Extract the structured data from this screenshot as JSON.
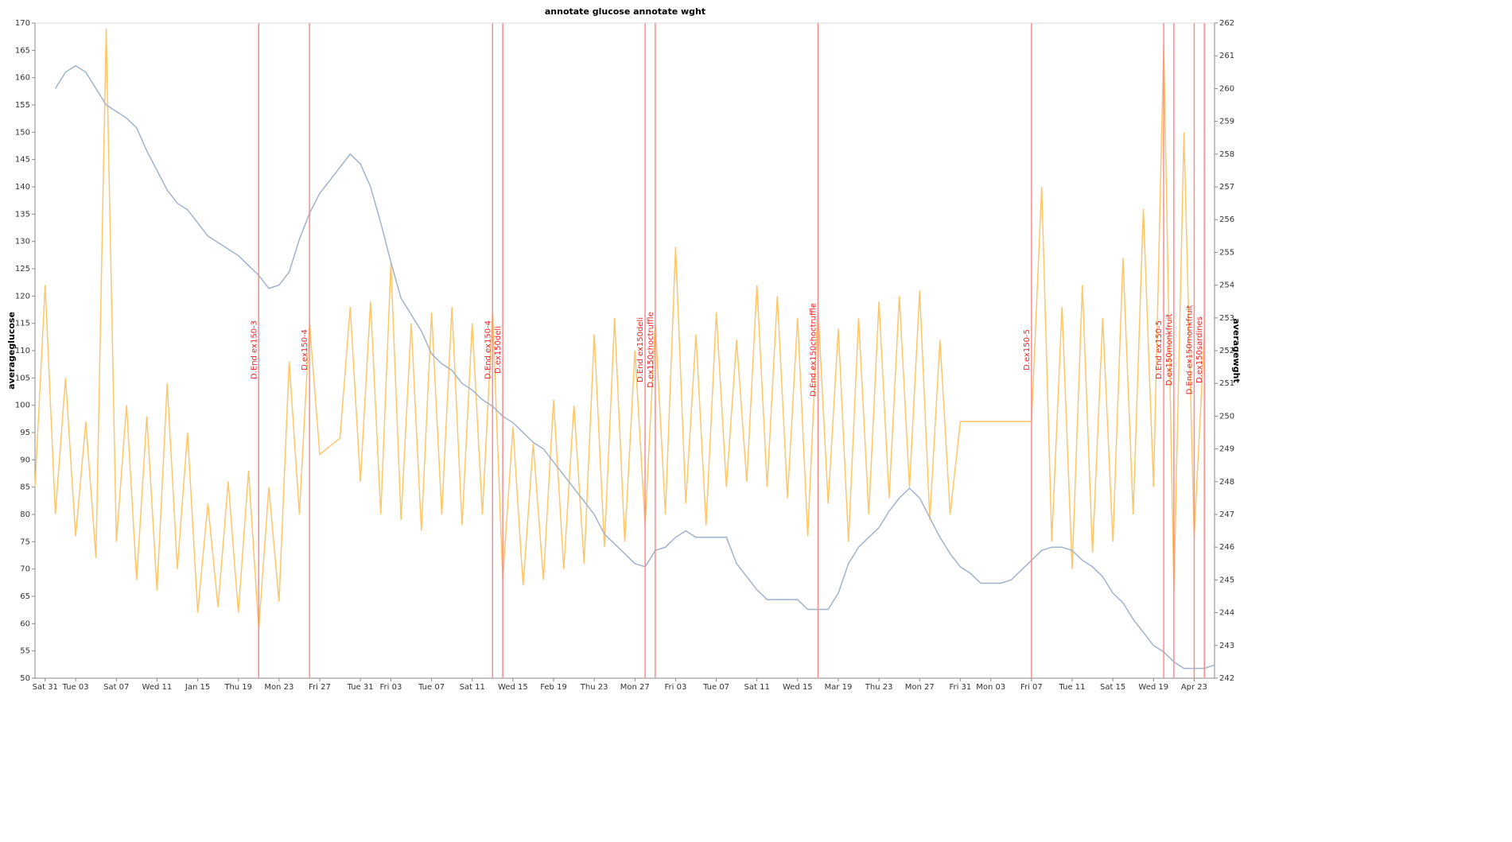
{
  "chart_data": {
    "type": "line",
    "title": "annotate glucose annotate wght",
    "xlim": [
      "12-30",
      "04-25"
    ],
    "xticks": [
      {
        "value": "12-31",
        "label": "Sat 31"
      },
      {
        "value": "01-03",
        "label": "Tue 03"
      },
      {
        "value": "01-07",
        "label": "Sat 07"
      },
      {
        "value": "01-11",
        "label": "Wed 11"
      },
      {
        "value": "01-15",
        "label": "Jan 15"
      },
      {
        "value": "01-19",
        "label": "Thu 19"
      },
      {
        "value": "01-23",
        "label": "Mon 23"
      },
      {
        "value": "01-27",
        "label": "Fri 27"
      },
      {
        "value": "01-31",
        "label": "Tue 31"
      },
      {
        "value": "02-03",
        "label": "Fri 03"
      },
      {
        "value": "02-07",
        "label": "Tue 07"
      },
      {
        "value": "02-11",
        "label": "Sat 11"
      },
      {
        "value": "02-15",
        "label": "Wed 15"
      },
      {
        "value": "02-19",
        "label": "Feb 19"
      },
      {
        "value": "02-23",
        "label": "Thu 23"
      },
      {
        "value": "02-27",
        "label": "Mon 27"
      },
      {
        "value": "03-03",
        "label": "Fri 03"
      },
      {
        "value": "03-07",
        "label": "Tue 07"
      },
      {
        "value": "03-11",
        "label": "Sat 11"
      },
      {
        "value": "03-15",
        "label": "Wed 15"
      },
      {
        "value": "03-19",
        "label": "Mar 19"
      },
      {
        "value": "03-23",
        "label": "Thu 23"
      },
      {
        "value": "03-27",
        "label": "Mon 27"
      },
      {
        "value": "03-31",
        "label": "Fri 31"
      },
      {
        "value": "04-03",
        "label": "Mon 03"
      },
      {
        "value": "04-07",
        "label": "Fri 07"
      },
      {
        "value": "04-11",
        "label": "Tue 11"
      },
      {
        "value": "04-15",
        "label": "Sat 15"
      },
      {
        "value": "04-19",
        "label": "Wed 19"
      },
      {
        "value": "04-23",
        "label": "Apr 23"
      }
    ],
    "ylim": [
      50,
      170
    ],
    "yticks": [
      50,
      55,
      60,
      65,
      70,
      75,
      80,
      85,
      90,
      95,
      100,
      105,
      110,
      115,
      120,
      125,
      130,
      135,
      140,
      145,
      150,
      155,
      160,
      165,
      170
    ],
    "y2lim": [
      242,
      262
    ],
    "y2ticks": [
      242,
      243,
      244,
      245,
      246,
      247,
      248,
      249,
      250,
      251,
      252,
      253,
      254,
      255,
      256,
      257,
      258,
      259,
      260,
      261,
      262
    ],
    "series": [
      {
        "name": "averageglucose",
        "color": "#ffc668",
        "x": [
          "12-30",
          "12-31",
          "01-01",
          "01-02",
          "01-03",
          "01-04",
          "01-05",
          "01-06",
          "01-07",
          "01-08",
          "01-09",
          "01-10",
          "01-11",
          "01-12",
          "01-13",
          "01-14",
          "01-15",
          "01-16",
          "01-17",
          "01-18",
          "01-19",
          "01-20",
          "01-21",
          "01-22",
          "01-23",
          "01-24",
          "01-25",
          "01-26",
          "01-27",
          "01-29",
          "01-30",
          "01-31",
          "02-01",
          "02-02",
          "02-03",
          "02-04",
          "02-05",
          "02-06",
          "02-07",
          "02-08",
          "02-09",
          "02-10",
          "02-11",
          "02-12",
          "02-13",
          "02-14",
          "02-15",
          "02-16",
          "02-17",
          "02-18",
          "02-19",
          "02-20",
          "02-21",
          "02-22",
          "02-23",
          "02-24",
          "02-25",
          "02-26",
          "02-27",
          "02-28",
          "03-01",
          "03-02",
          "03-03",
          "03-04",
          "03-05",
          "03-06",
          "03-07",
          "03-08",
          "03-09",
          "03-10",
          "03-11",
          "03-12",
          "03-13",
          "03-14",
          "03-15",
          "03-16",
          "03-17",
          "03-18",
          "03-19",
          "03-20",
          "03-21",
          "03-22",
          "03-23",
          "03-24",
          "03-25",
          "03-26",
          "03-27",
          "03-28",
          "03-29",
          "03-30",
          "03-31",
          "04-07",
          "04-08",
          "04-09",
          "04-10",
          "04-11",
          "04-12",
          "04-13",
          "04-14",
          "04-15",
          "04-16",
          "04-17",
          "04-18",
          "04-19",
          "04-20",
          "04-21",
          "04-22",
          "04-23",
          "04-24"
        ],
        "values": [
          85,
          122,
          80,
          105,
          76,
          97,
          72,
          169,
          75,
          100,
          68,
          98,
          66,
          104,
          70,
          95,
          62,
          82,
          63,
          86,
          62,
          88,
          59,
          85,
          64,
          108,
          80,
          115,
          91,
          94,
          118,
          86,
          119,
          80,
          126,
          79,
          115,
          77,
          117,
          80,
          118,
          78,
          115,
          80,
          117,
          68,
          96,
          67,
          93,
          68,
          101,
          70,
          100,
          71,
          113,
          74,
          116,
          75,
          110,
          78,
          115,
          80,
          129,
          82,
          113,
          78,
          117,
          85,
          112,
          86,
          122,
          85,
          120,
          83,
          116,
          76,
          118,
          82,
          114,
          75,
          116,
          80,
          119,
          83,
          120,
          85,
          121,
          79,
          112,
          80,
          97,
          97,
          140,
          75,
          118,
          70,
          122,
          73,
          116,
          75,
          127,
          80,
          136,
          85,
          166,
          66,
          150,
          76,
          113
        ]
      },
      {
        "name": "averagewght",
        "color": "#9fb3cd",
        "axis": "y2",
        "x": [
          "01-01",
          "01-02",
          "01-03",
          "01-04",
          "01-06",
          "01-07",
          "01-08",
          "01-09",
          "01-10",
          "01-11",
          "01-12",
          "01-13",
          "01-14",
          "01-15",
          "01-16",
          "01-17",
          "01-18",
          "01-19",
          "01-20",
          "01-21",
          "01-22",
          "01-23",
          "01-24",
          "01-25",
          "01-26",
          "01-27",
          "01-28",
          "01-29",
          "01-30",
          "01-31",
          "02-01",
          "02-02",
          "02-03",
          "02-04",
          "02-05",
          "02-06",
          "02-07",
          "02-08",
          "02-09",
          "02-10",
          "02-11",
          "02-12",
          "02-13",
          "02-14",
          "02-15",
          "02-16",
          "02-17",
          "02-18",
          "02-19",
          "02-20",
          "02-21",
          "02-22",
          "02-23",
          "02-24",
          "02-25",
          "02-26",
          "02-27",
          "02-28",
          "03-01",
          "03-02",
          "03-03",
          "03-04",
          "03-05",
          "03-06",
          "03-07",
          "03-08",
          "03-09",
          "03-10",
          "03-11",
          "03-12",
          "03-13",
          "03-14",
          "03-15",
          "03-16",
          "03-17",
          "03-18",
          "03-19",
          "03-20",
          "03-21",
          "03-22",
          "03-23",
          "03-24",
          "03-25",
          "03-26",
          "03-27",
          "03-28",
          "03-29",
          "03-30",
          "03-31",
          "04-01",
          "04-02",
          "04-03",
          "04-04",
          "04-05",
          "04-06",
          "04-07",
          "04-08",
          "04-09",
          "04-10",
          "04-11",
          "04-12",
          "04-13",
          "04-14",
          "04-15",
          "04-16",
          "04-17",
          "04-18",
          "04-19",
          "04-20",
          "04-21",
          "04-22",
          "04-23",
          "04-24",
          "04-25"
        ],
        "values": [
          260.0,
          260.5,
          260.7,
          260.5,
          259.5,
          259.3,
          259.1,
          258.8,
          258.1,
          257.5,
          256.9,
          256.5,
          256.3,
          255.9,
          255.5,
          255.3,
          255.1,
          254.9,
          254.6,
          254.3,
          253.9,
          254.0,
          254.4,
          255.4,
          256.2,
          256.8,
          257.2,
          257.6,
          258.0,
          257.7,
          257.0,
          255.9,
          254.7,
          253.6,
          253.1,
          252.6,
          251.9,
          251.6,
          251.4,
          251.0,
          250.8,
          250.5,
          250.3,
          250.0,
          249.8,
          249.5,
          249.2,
          249.0,
          248.6,
          248.2,
          247.8,
          247.4,
          247.0,
          246.4,
          246.1,
          245.8,
          245.5,
          245.4,
          245.9,
          246.0,
          246.3,
          246.5,
          246.3,
          246.3,
          246.3,
          246.3,
          245.5,
          245.1,
          244.7,
          244.4,
          244.4,
          244.4,
          244.4,
          244.1,
          244.1,
          244.1,
          244.6,
          245.5,
          246.0,
          246.3,
          246.6,
          247.1,
          247.5,
          247.8,
          247.5,
          246.9,
          246.3,
          245.8,
          245.4,
          245.2,
          244.9,
          244.9,
          244.9,
          245.0,
          245.3,
          245.6,
          245.9,
          246.0,
          246.0,
          245.9,
          245.6,
          245.4,
          245.1,
          244.6,
          244.3,
          243.8,
          243.4,
          243.0,
          242.8,
          242.5,
          242.3,
          242.3,
          242.3,
          242.4
        ]
      }
    ],
    "annotation_color": "#ff8a8a",
    "annotations": [
      {
        "x": "01-21",
        "label": "D.End ex150-3"
      },
      {
        "x": "01-26",
        "label": "D.ex150-4"
      },
      {
        "x": "02-13",
        "label": "D.End ex150-4"
      },
      {
        "x": "02-14",
        "label": "D.ex150deli"
      },
      {
        "x": "02-28",
        "label": "D.End ex150deli"
      },
      {
        "x": "03-01",
        "label": "D.ex150choctruffle"
      },
      {
        "x": "03-17",
        "label": "D.End ex150choctruffle"
      },
      {
        "x": "04-07",
        "label": "D.ex150-5"
      },
      {
        "x": "04-20",
        "label": "D.End ex150-5"
      },
      {
        "x": "04-21",
        "label": "D.ex150monkfruit"
      },
      {
        "x": "04-23",
        "label": "D.End ex150monkfruit"
      },
      {
        "x": "04-24",
        "label": "D.ex150sardines"
      }
    ]
  }
}
